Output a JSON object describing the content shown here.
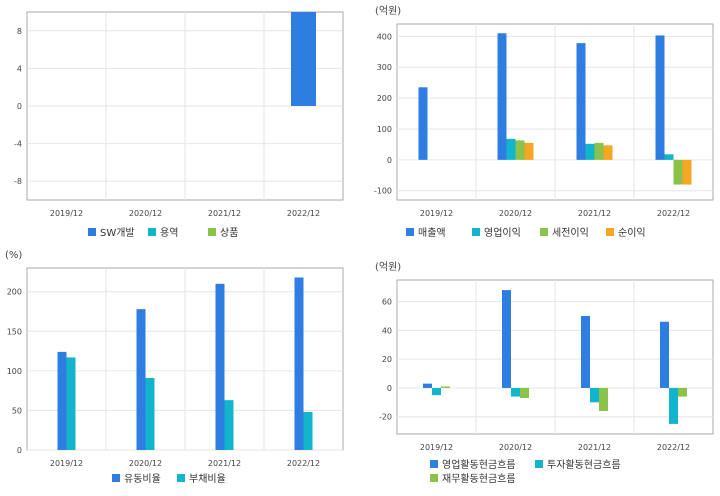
{
  "colors": {
    "blue": "#2e7de1",
    "cyan": "#12b5cb",
    "green": "#8bc34a",
    "orange": "#f5a623",
    "grid": "#e6e6e6",
    "axis": "#aaaaaa",
    "text": "#444444"
  },
  "chart_data": [
    {
      "type": "bar",
      "title": "",
      "unit": "",
      "categories": [
        "2019/12",
        "2020/12",
        "2021/12",
        "2022/12"
      ],
      "ylim": [
        -10,
        10
      ],
      "yticks": [
        -8,
        -4,
        0,
        4,
        8
      ],
      "series": [
        {
          "name": "SW개발",
          "color": "#2e7de1",
          "values": [
            null,
            null,
            null,
            10
          ]
        },
        {
          "name": "용역",
          "color": "#12b5cb",
          "values": [
            null,
            null,
            null,
            null
          ]
        },
        {
          "name": "상품",
          "color": "#8bc34a",
          "values": [
            null,
            null,
            null,
            null
          ]
        }
      ]
    },
    {
      "type": "bar",
      "title": "",
      "unit": "(억원)",
      "categories": [
        "2019/12",
        "2020/12",
        "2021/12",
        "2022/12"
      ],
      "ylim": [
        -130,
        440
      ],
      "yticks": [
        -100,
        0,
        100,
        200,
        300,
        400
      ],
      "series": [
        {
          "name": "매출액",
          "color": "#2e7de1",
          "values": [
            235,
            410,
            378,
            403
          ]
        },
        {
          "name": "영업이익",
          "color": "#12b5cb",
          "values": [
            null,
            68,
            52,
            18
          ]
        },
        {
          "name": "세전이익",
          "color": "#8bc34a",
          "values": [
            null,
            63,
            55,
            -80
          ]
        },
        {
          "name": "순이익",
          "color": "#f5a623",
          "values": [
            null,
            55,
            47,
            -80
          ]
        }
      ]
    },
    {
      "type": "bar",
      "title": "",
      "unit": "(%)",
      "categories": [
        "2019/12",
        "2020/12",
        "2021/12",
        "2022/12"
      ],
      "ylim": [
        0,
        230
      ],
      "yticks": [
        0,
        50,
        100,
        150,
        200
      ],
      "series": [
        {
          "name": "유동비율",
          "color": "#2e7de1",
          "values": [
            124,
            178,
            210,
            218
          ]
        },
        {
          "name": "부채비율",
          "color": "#12b5cb",
          "values": [
            117,
            91,
            63,
            48
          ]
        }
      ]
    },
    {
      "type": "bar",
      "title": "",
      "unit": "(억원)",
      "categories": [
        "2019/12",
        "2020/12",
        "2021/12",
        "2022/12"
      ],
      "ylim": [
        -32,
        75
      ],
      "yticks": [
        -20,
        0,
        20,
        40,
        60
      ],
      "series": [
        {
          "name": "영업활동현금흐름",
          "color": "#2e7de1",
          "values": [
            3,
            68,
            50,
            46
          ]
        },
        {
          "name": "투자활동현금흐름",
          "color": "#12b5cb",
          "values": [
            -5,
            -6,
            -10,
            -25
          ]
        },
        {
          "name": "재무활동현금흐름",
          "color": "#8bc34a",
          "values": [
            1,
            -7,
            -16,
            -6
          ]
        }
      ]
    }
  ]
}
